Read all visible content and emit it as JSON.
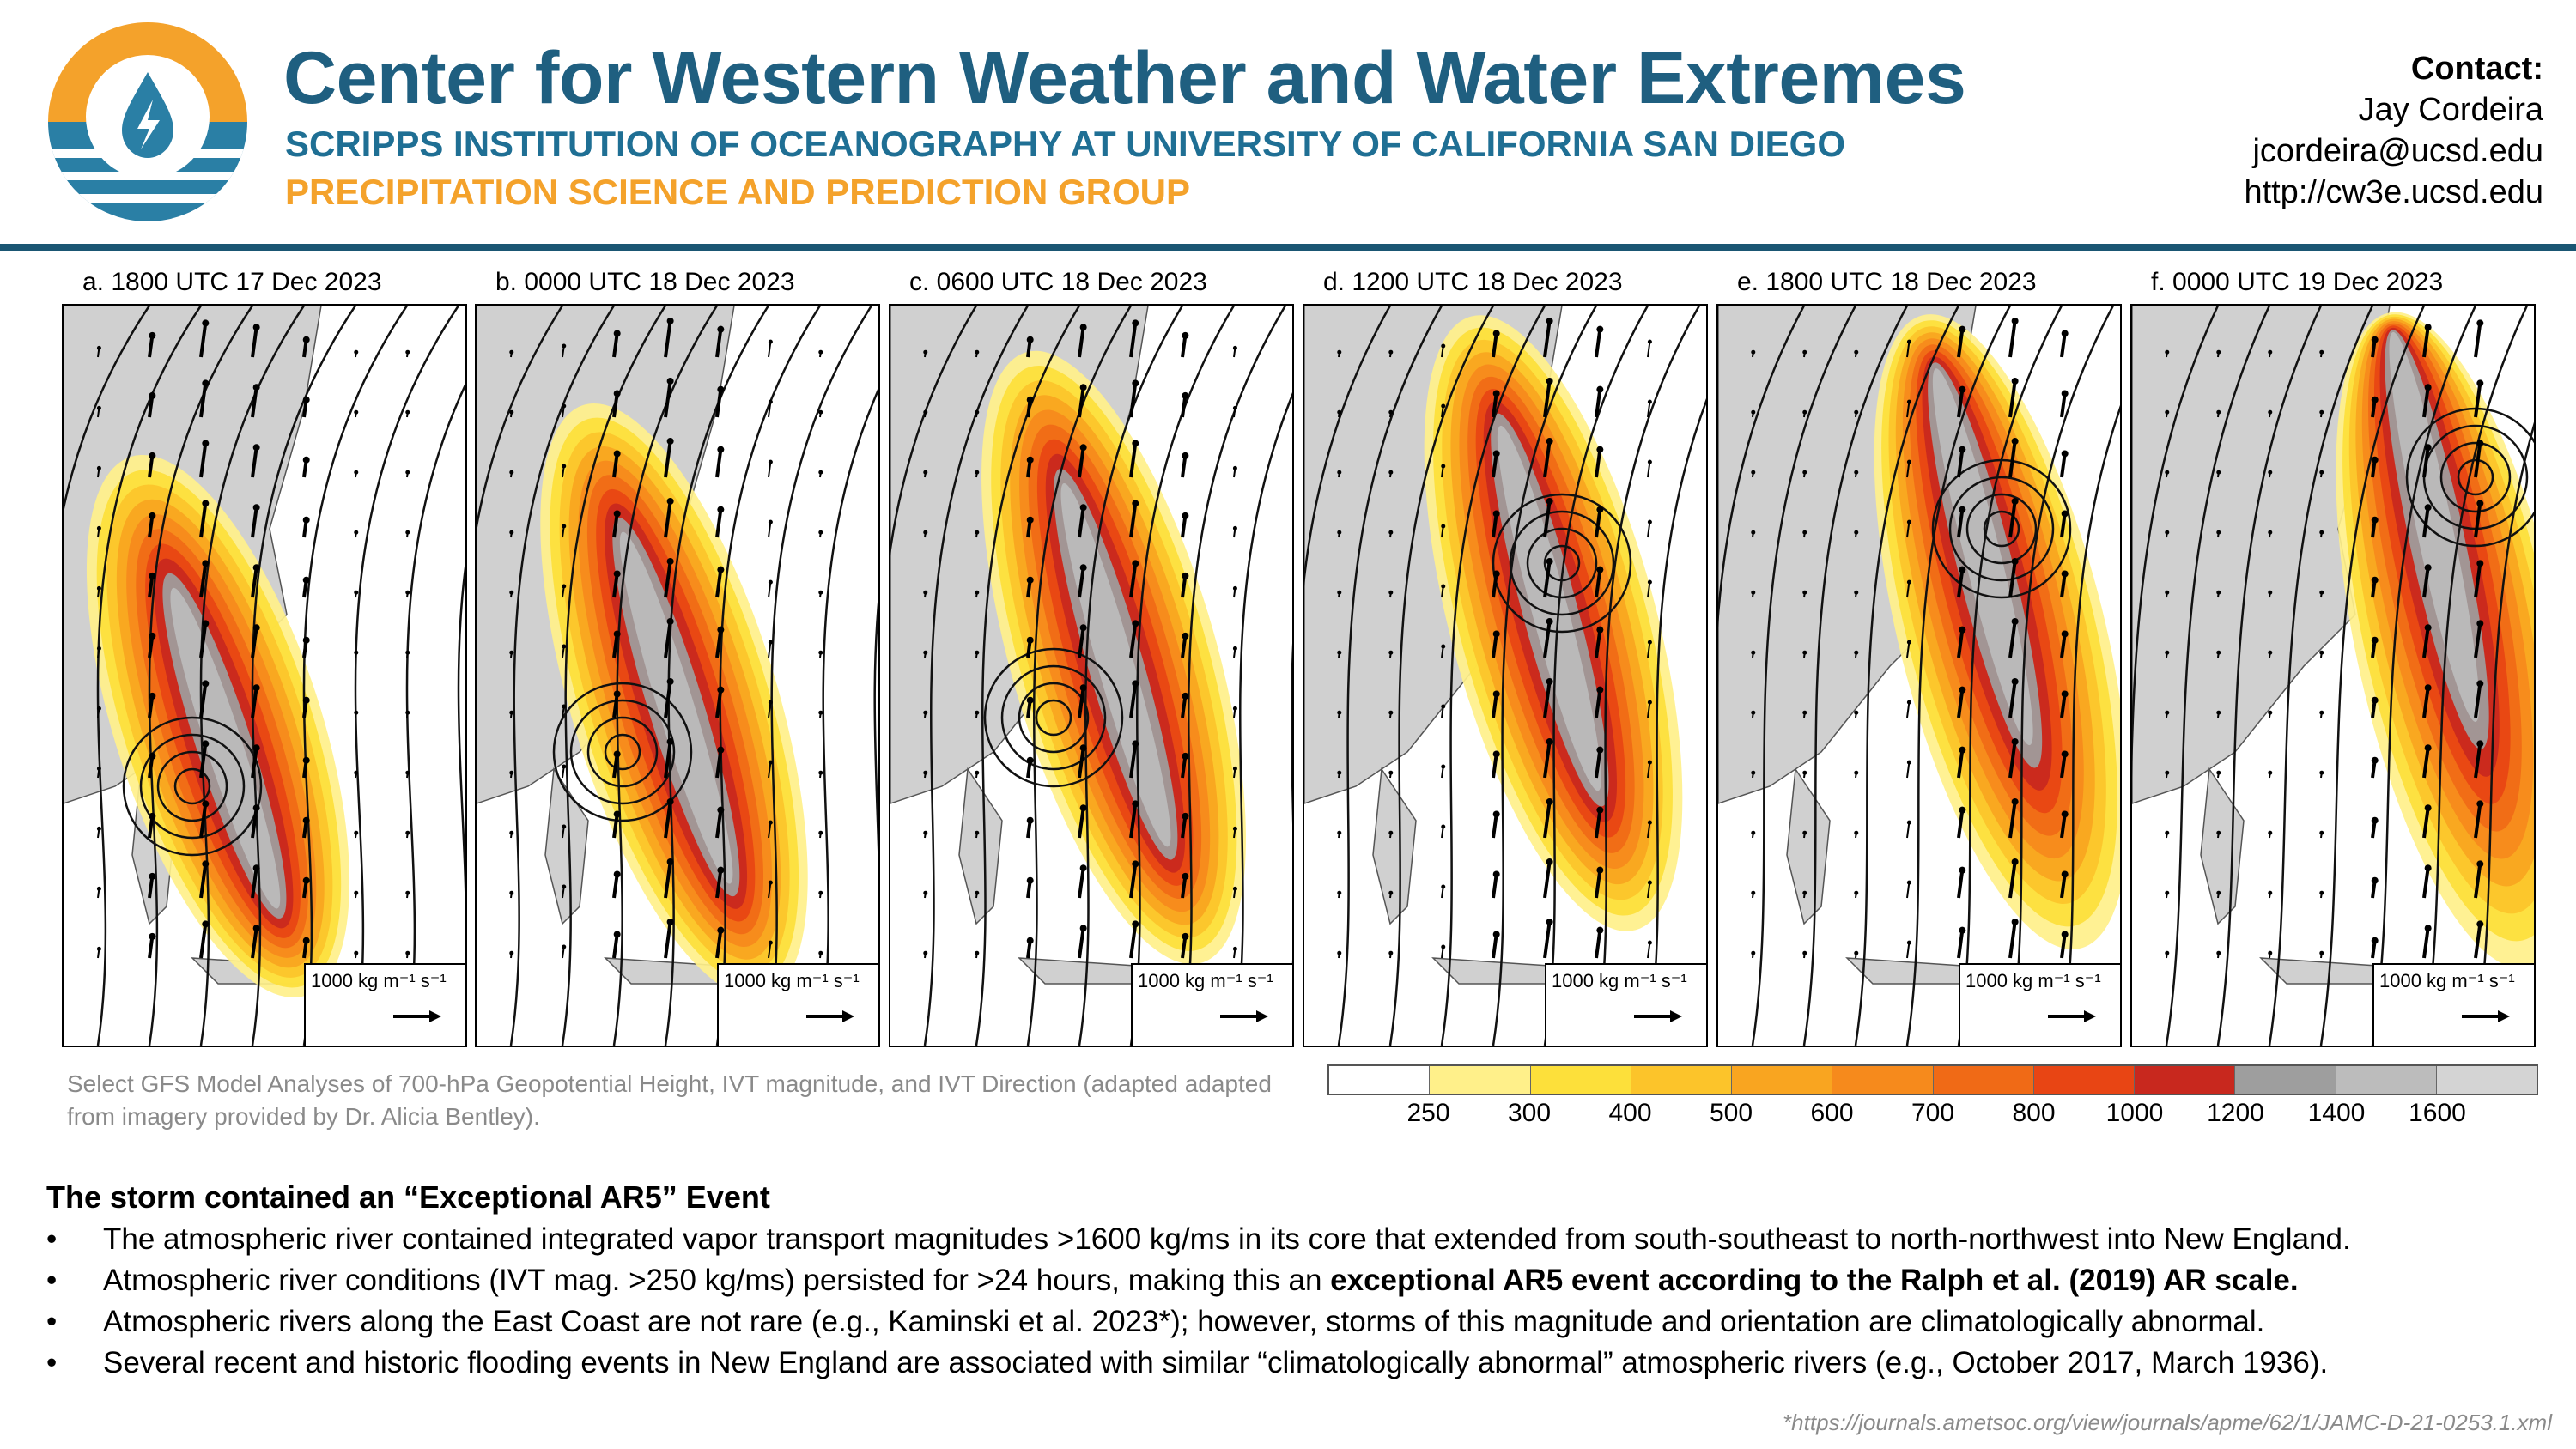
{
  "header": {
    "title": "Center for Western Weather and Water Extremes",
    "subtitle_1": "SCRIPPS INSTITUTION OF OCEANOGRAPHY AT UNIVERSITY OF CALIFORNIA SAN DIEGO",
    "subtitle_2": "PRECIPITATION SCIENCE AND PREDICTION GROUP",
    "logo_icon": "water-drop-sun-logo"
  },
  "contact": {
    "heading": "Contact:",
    "name": "Jay Cordeira",
    "email": "jcordeira@ucsd.edu",
    "url": "http://cw3e.ucsd.edu"
  },
  "panels": [
    {
      "label": "a. 1800 UTC 17 Dec 2023",
      "ref_label": "1000 kg m⁻¹ s⁻¹"
    },
    {
      "label": "b. 0000 UTC 18 Dec 2023",
      "ref_label": "1000 kg m⁻¹ s⁻¹"
    },
    {
      "label": "c. 0600 UTC 18 Dec 2023",
      "ref_label": "1000 kg m⁻¹ s⁻¹"
    },
    {
      "label": "d. 1200 UTC 18 Dec 2023",
      "ref_label": "1000 kg m⁻¹ s⁻¹"
    },
    {
      "label": "e. 1800 UTC 18 Dec 2023",
      "ref_label": "1000 kg m⁻¹ s⁻¹"
    },
    {
      "label": "f. 0000 UTC 19 Dec 2023",
      "ref_label": "1000 kg m⁻¹ s⁻¹"
    }
  ],
  "caption": "Select GFS Model Analyses of 700-hPa Geopotential Height, IVT magnitude, and IVT Direction (adapted adapted from imagery provided by Dr. Alicia Bentley).",
  "colorbar": {
    "ticks": [
      "250",
      "300",
      "400",
      "500",
      "600",
      "700",
      "800",
      "1000",
      "1200",
      "1400",
      "1600"
    ],
    "colors": [
      "#ffffff",
      "#fff08a",
      "#fde03a",
      "#fcc42a",
      "#f9a520",
      "#f68a1c",
      "#f06a16",
      "#e84514",
      "#c8281e",
      "#9e9e9e",
      "#bcbcbc",
      "#d4d4d4"
    ]
  },
  "summary": {
    "heading": "The storm contained an “Exceptional AR5” Event",
    "bullets": [
      {
        "text": "The atmospheric river contained integrated vapor transport magnitudes >1600 kg/ms in its core that extended from south-southeast to north-northwest into New England.",
        "bold": ""
      },
      {
        "text": "Atmospheric river conditions (IVT mag. >250 kg/ms) persisted for >24 hours, making this an ",
        "bold": "exceptional AR5 event according to the Ralph et al. (2019) AR scale."
      },
      {
        "text": "Atmospheric rivers along the East Coast are not rare (e.g., Kaminski et al. 2023*); however, storms of this magnitude and orientation are climatologically abnormal.",
        "bold": ""
      },
      {
        "text": "Several recent and historic flooding events in New England are associated with similar “climatologically abnormal” atmospheric rivers (e.g., October 2017, March 1936).",
        "bold": ""
      }
    ],
    "bullet_symbol": "•"
  },
  "footnote": "*https://journals.ametsoc.org/view/journals/apme/62/1/JAMC-D-21-0253.1.xml"
}
